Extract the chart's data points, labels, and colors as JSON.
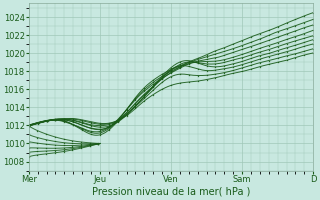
{
  "xlabel": "Pression niveau de la mer( hPa )",
  "bg_color": "#c8e8e0",
  "plot_bg_color": "#c8e8e0",
  "grid_color": "#a0c8b8",
  "line_color": "#1a5c1a",
  "ylim": [
    1007.0,
    1025.5
  ],
  "yticks": [
    1008,
    1010,
    1012,
    1014,
    1016,
    1018,
    1020,
    1022,
    1024
  ],
  "day_labels": [
    "Mer",
    "Jeu",
    "Ven",
    "Sam",
    "D"
  ],
  "day_positions": [
    0,
    48,
    96,
    144,
    192
  ],
  "xlim": [
    0,
    192
  ],
  "num_points": 193,
  "num_lines": 9,
  "xlabel_fontsize": 7,
  "tick_fontsize": 6
}
